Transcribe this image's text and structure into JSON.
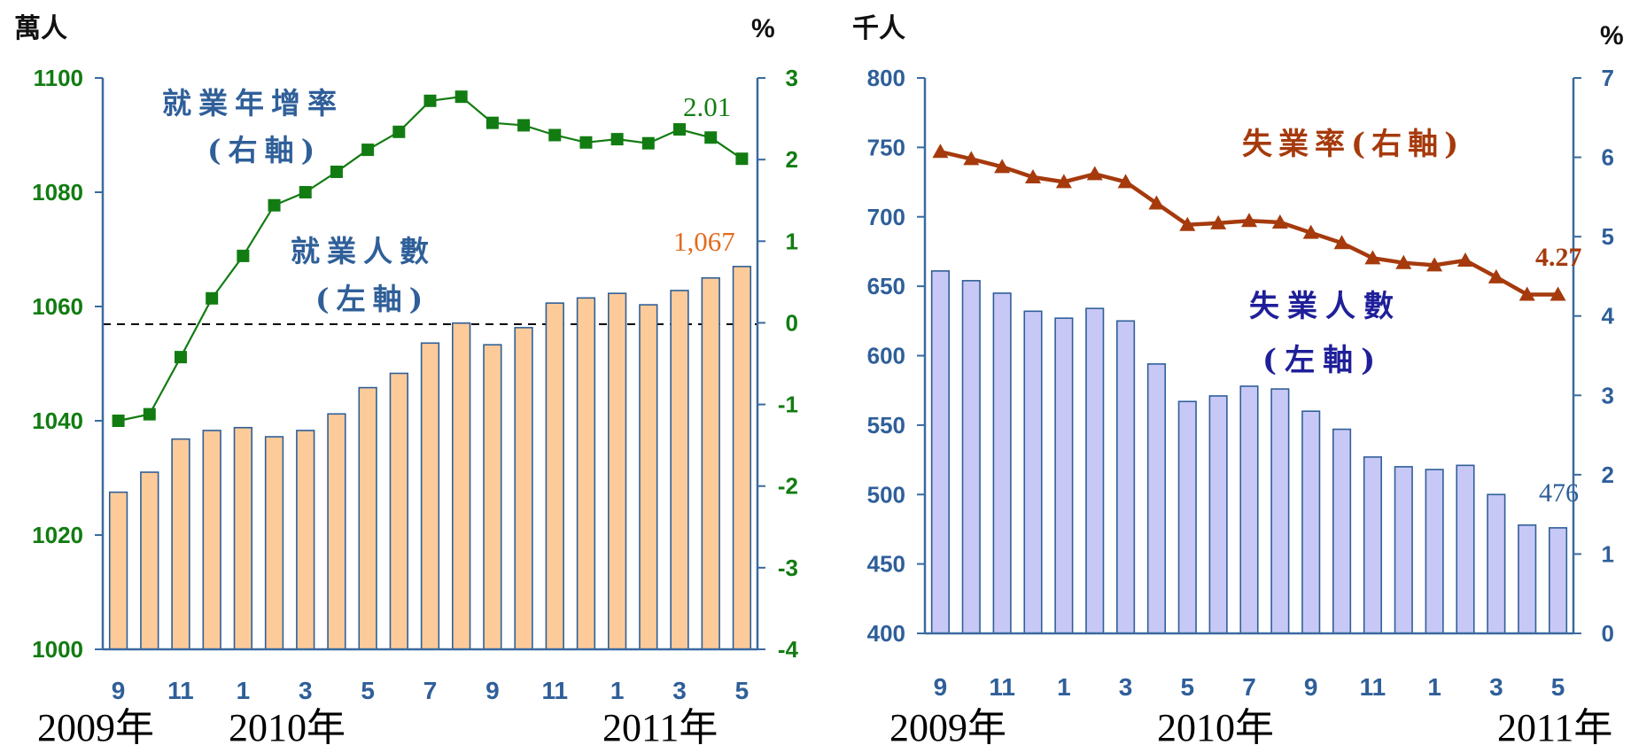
{
  "colors": {
    "left_bar_fill": "#fccb99",
    "left_bar_stroke": "#2f5f99",
    "left_line": "#127c12",
    "left_axis_text": "#127c12",
    "left_axis_line": "#3a6aa0",
    "right_bar_fill": "#c8c8f6",
    "right_bar_stroke": "#2f5f99",
    "right_line": "#a63a0c",
    "right_axis_text": "#2f5f99",
    "label_blue": "#2f5f99",
    "label_navy": "#1f1f9a",
    "label_orange": "#e36b1e",
    "label_brown": "#a63a0c"
  },
  "chart_data": [
    {
      "type": "bar",
      "unit_left": "萬人",
      "unit_right": "%",
      "x_tick_labels": [
        "9",
        "11",
        "1",
        "3",
        "5",
        "7",
        "9",
        "11",
        "1",
        "3",
        "5"
      ],
      "year_labels": [
        "2009年",
        "2010年",
        "2011年"
      ],
      "y_left": {
        "lim": [
          1000,
          1100
        ],
        "ticks": [
          1000,
          1020,
          1040,
          1060,
          1080,
          1100
        ]
      },
      "y_right": {
        "lim": [
          -4,
          3
        ],
        "ticks": [
          -4,
          -3,
          -2,
          -1,
          0,
          1,
          2,
          3
        ]
      },
      "series": [
        {
          "name": "就業人數(左軸)",
          "axis": "left",
          "type": "bar",
          "values": [
            1027.5,
            1031,
            1036.8,
            1038.3,
            1038.8,
            1037.2,
            1038.3,
            1041.2,
            1045.8,
            1048.3,
            1053.6,
            1057.1,
            1053.3,
            1056.3,
            1060.6,
            1061.5,
            1062.3,
            1060.3,
            1062.8,
            1065,
            1067
          ]
        },
        {
          "name": "就業年增率(右軸)",
          "axis": "right",
          "type": "line",
          "values": [
            -1.2,
            -1.12,
            -0.42,
            0.3,
            0.82,
            1.44,
            1.6,
            1.85,
            2.12,
            2.34,
            2.72,
            2.77,
            2.45,
            2.42,
            2.3,
            2.21,
            2.25,
            2.2,
            2.37,
            2.27,
            2.01
          ]
        }
      ],
      "reference_line": {
        "axis": "right",
        "value": 0
      },
      "annotations": {
        "last_bar_value": "1,067",
        "last_line_value": "2.01"
      },
      "legend_text": {
        "line_1": "就業年增率",
        "line_2": "(右軸)",
        "bar_1": "就業人數",
        "bar_2": "(左軸)"
      }
    },
    {
      "type": "bar",
      "unit_left": "千人",
      "unit_right": "%",
      "x_tick_labels": [
        "9",
        "11",
        "1",
        "3",
        "5",
        "7",
        "9",
        "11",
        "1",
        "3",
        "5"
      ],
      "year_labels": [
        "2009年",
        "2010年",
        "2011年"
      ],
      "y_left": {
        "lim": [
          400,
          800
        ],
        "ticks": [
          400,
          450,
          500,
          550,
          600,
          650,
          700,
          750,
          800
        ]
      },
      "y_right": {
        "lim": [
          0,
          7
        ],
        "ticks": [
          0,
          1,
          2,
          3,
          4,
          5,
          6,
          7
        ]
      },
      "series": [
        {
          "name": "失業人數(左軸)",
          "axis": "left",
          "type": "bar",
          "values": [
            661,
            654,
            645,
            632,
            627,
            634,
            625,
            594,
            567,
            571,
            578,
            576,
            560,
            547,
            527,
            520,
            518,
            521,
            500,
            478,
            476
          ]
        },
        {
          "name": "失業率(右軸)",
          "axis": "right",
          "type": "line",
          "values": [
            6.07,
            5.98,
            5.88,
            5.75,
            5.69,
            5.79,
            5.69,
            5.42,
            5.15,
            5.17,
            5.2,
            5.18,
            5.05,
            4.92,
            4.73,
            4.67,
            4.64,
            4.7,
            4.49,
            4.27,
            4.27
          ]
        }
      ],
      "annotations": {
        "last_bar_value": "476",
        "last_line_value": "4.27"
      },
      "legend_text": {
        "line": "失業率(右軸)",
        "bar_1": "失業人數",
        "bar_2": "(左軸)"
      }
    }
  ]
}
